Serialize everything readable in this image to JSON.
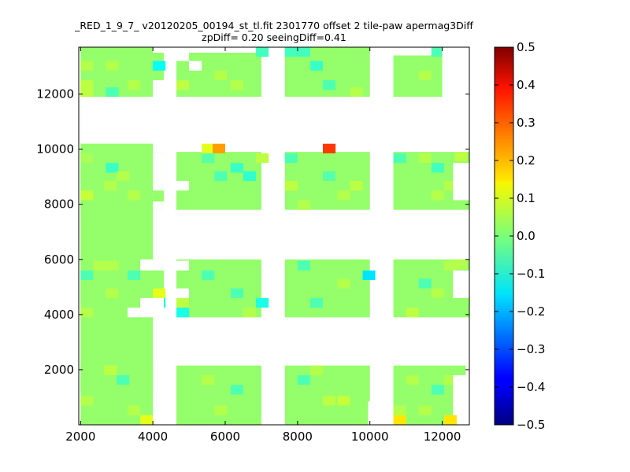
{
  "chart_data": {
    "type": "heatmap",
    "title": "_RED_1_9_7_ v20120205_00194_st_tl.fit 2301770 offset 2 tile-paw apermag3Diff",
    "subtitle": "zpDiff= 0.20 seeingDiff=0.41",
    "xlabel": "",
    "ylabel": "",
    "xlim": [
      1950,
      12750
    ],
    "ylim": [
      0,
      13700
    ],
    "xticks": [
      2000,
      4000,
      6000,
      8000,
      10000,
      12000
    ],
    "yticks": [
      2000,
      4000,
      6000,
      8000,
      10000,
      12000
    ],
    "colormap": "jet",
    "color_range": [
      -0.5,
      0.5
    ],
    "colorbar_ticks": [
      0.5,
      0.4,
      0.3,
      0.2,
      0.1,
      0.0,
      -0.1,
      -0.2,
      -0.3,
      -0.4,
      -0.5
    ],
    "cell_size": [
      350,
      350
    ],
    "background_value": 0.02,
    "blocks": [
      {
        "x": [
          2000,
          4000
        ],
        "y": [
          1200,
          13700
        ]
      },
      {
        "x": [
          4000,
          4300
        ],
        "y": [
          12500,
          13500
        ]
      },
      {
        "x": [
          4650,
          7000
        ],
        "y": [
          11900,
          13500
        ]
      },
      {
        "x": [
          7650,
          10000
        ],
        "y": [
          11900,
          13700
        ]
      },
      {
        "x": [
          10650,
          12000
        ],
        "y": [
          11900,
          13400
        ]
      },
      {
        "x": [
          2000,
          4000
        ],
        "y": [
          7800,
          9900
        ]
      },
      {
        "x": [
          4000,
          4300
        ],
        "y": [
          7800,
          9900
        ]
      },
      {
        "x": [
          4650,
          7000
        ],
        "y": [
          7800,
          9900
        ]
      },
      {
        "x": [
          7650,
          10000
        ],
        "y": [
          7800,
          9900
        ]
      },
      {
        "x": [
          10650,
          12750
        ],
        "y": [
          7800,
          9900
        ]
      },
      {
        "x": [
          2000,
          4300
        ],
        "y": [
          3900,
          6000
        ]
      },
      {
        "x": [
          4650,
          7000
        ],
        "y": [
          3900,
          6000
        ]
      },
      {
        "x": [
          7650,
          10000
        ],
        "y": [
          3900,
          6000
        ]
      },
      {
        "x": [
          10650,
          12750
        ],
        "y": [
          3900,
          6000
        ]
      },
      {
        "x": [
          2000,
          4000
        ],
        "y": [
          0,
          2150
        ]
      },
      {
        "x": [
          4650,
          7000
        ],
        "y": [
          0,
          2150
        ]
      },
      {
        "x": [
          7650,
          10000
        ],
        "y": [
          0,
          2150
        ]
      },
      {
        "x": [
          10650,
          12650
        ],
        "y": [
          0,
          2150
        ]
      }
    ],
    "holes": [
      {
        "x": [
          2000,
          12750
        ],
        "y": [
          10200,
          11900
        ]
      },
      {
        "x": [
          4000,
          4300
        ],
        "y": [
          11900,
          12500
        ]
      },
      {
        "x": [
          4000,
          4300
        ],
        "y": [
          13500,
          13700
        ]
      },
      {
        "x": [
          4650,
          5000
        ],
        "y": [
          13200,
          13500
        ]
      },
      {
        "x": [
          5000,
          5350
        ],
        "y": [
          12850,
          13200
        ]
      },
      {
        "x": [
          12000,
          12750
        ],
        "y": [
          11900,
          13700
        ]
      },
      {
        "x": [
          4000,
          4300
        ],
        "y": [
          7800,
          8100
        ]
      },
      {
        "x": [
          4000,
          4300
        ],
        "y": [
          8500,
          9900
        ]
      },
      {
        "x": [
          4650,
          5000
        ],
        "y": [
          8500,
          8850
        ]
      },
      {
        "x": [
          12300,
          12750
        ],
        "y": [
          8150,
          9500
        ]
      },
      {
        "x": [
          3300,
          3650
        ],
        "y": [
          3900,
          4250
        ]
      },
      {
        "x": [
          3650,
          4300
        ],
        "y": [
          3900,
          4600
        ]
      },
      {
        "x": [
          3650,
          4000
        ],
        "y": [
          5600,
          6000
        ]
      },
      {
        "x": [
          4000,
          4300
        ],
        "y": [
          5600,
          6000
        ]
      },
      {
        "x": [
          4650,
          5000
        ],
        "y": [
          5600,
          5950
        ]
      },
      {
        "x": [
          4650,
          5000
        ],
        "y": [
          4600,
          4950
        ]
      },
      {
        "x": [
          12300,
          12750
        ],
        "y": [
          4600,
          5600
        ]
      },
      {
        "x": [
          9950,
          10650
        ],
        "y": [
          0,
          850
        ]
      },
      {
        "x": [
          12300,
          12750
        ],
        "y": [
          350,
          1800
        ]
      },
      {
        "x": [
          12400,
          12750
        ],
        "y": [
          0,
          350
        ]
      }
    ],
    "cells": [
      {
        "x": 5350,
        "y": 9850,
        "v": 0.1
      },
      {
        "x": 5650,
        "y": 9850,
        "v": 0.22
      },
      {
        "x": 8700,
        "y": 9850,
        "v": 0.32
      },
      {
        "x": 4000,
        "y": 4600,
        "v": 0.1
      },
      {
        "x": 4000,
        "y": 4250,
        "v": -0.1
      },
      {
        "x": 4650,
        "y": 4250,
        "v": 0.06
      },
      {
        "x": 4650,
        "y": 3900,
        "v": -0.1
      },
      {
        "x": 4000,
        "y": 12850,
        "v": -0.12
      },
      {
        "x": 9800,
        "y": 5250,
        "v": -0.15
      },
      {
        "x": 6850,
        "y": 4250,
        "v": -0.1
      },
      {
        "x": 6500,
        "y": 8850,
        "v": -0.08
      },
      {
        "x": 10650,
        "y": 0,
        "v": 0.15
      },
      {
        "x": 12050,
        "y": 0,
        "v": 0.15
      },
      {
        "x": 10650,
        "y": 350,
        "v": 0.05
      },
      {
        "x": 3650,
        "y": 0,
        "v": 0.1
      },
      {
        "x": 6850,
        "y": 9500,
        "v": 0.06
      },
      {
        "x": 7650,
        "y": 8500,
        "v": 0.06
      },
      {
        "x": 7650,
        "y": 9500,
        "v": -0.05
      },
      {
        "x": 7650,
        "y": 13350,
        "v": -0.06
      },
      {
        "x": 8000,
        "y": 13350,
        "v": -0.06
      },
      {
        "x": 2000,
        "y": 12850,
        "v": 0.05
      },
      {
        "x": 2700,
        "y": 12850,
        "v": 0.05
      },
      {
        "x": 3300,
        "y": 12150,
        "v": 0.05
      },
      {
        "x": 2700,
        "y": 11900,
        "v": -0.05
      },
      {
        "x": 2000,
        "y": 11900,
        "v": 0.06
      },
      {
        "x": 2000,
        "y": 12150,
        "v": 0.06
      },
      {
        "x": 8350,
        "y": 12850,
        "v": -0.07
      },
      {
        "x": 6850,
        "y": 13350,
        "v": -0.06
      },
      {
        "x": 5700,
        "y": 12500,
        "v": 0.05
      },
      {
        "x": 6150,
        "y": 12150,
        "v": 0.05
      },
      {
        "x": 4650,
        "y": 12150,
        "v": 0.06
      },
      {
        "x": 8700,
        "y": 12150,
        "v": -0.05
      },
      {
        "x": 9450,
        "y": 11900,
        "v": 0.05
      },
      {
        "x": 11350,
        "y": 12500,
        "v": 0.05
      },
      {
        "x": 11700,
        "y": 13350,
        "v": -0.05
      },
      {
        "x": 2000,
        "y": 9500,
        "v": 0.04
      },
      {
        "x": 2700,
        "y": 9150,
        "v": -0.07
      },
      {
        "x": 3000,
        "y": 8850,
        "v": 0.05
      },
      {
        "x": 2650,
        "y": 8500,
        "v": 0.05
      },
      {
        "x": 2000,
        "y": 8150,
        "v": 0.07
      },
      {
        "x": 3300,
        "y": 8150,
        "v": 0.05
      },
      {
        "x": 5350,
        "y": 9500,
        "v": -0.04
      },
      {
        "x": 6150,
        "y": 9150,
        "v": -0.07
      },
      {
        "x": 5700,
        "y": 8850,
        "v": -0.05
      },
      {
        "x": 8000,
        "y": 7800,
        "v": 0.05
      },
      {
        "x": 9100,
        "y": 8150,
        "v": 0.05
      },
      {
        "x": 9450,
        "y": 8500,
        "v": 0.06
      },
      {
        "x": 8700,
        "y": 8850,
        "v": -0.04
      },
      {
        "x": 11350,
        "y": 9500,
        "v": 0.05
      },
      {
        "x": 11700,
        "y": 9150,
        "v": -0.06
      },
      {
        "x": 10650,
        "y": 9500,
        "v": -0.05
      },
      {
        "x": 12050,
        "y": 8500,
        "v": 0.05
      },
      {
        "x": 11700,
        "y": 8150,
        "v": 0.05
      },
      {
        "x": 12350,
        "y": 9550,
        "v": 0.06
      },
      {
        "x": 2350,
        "y": 5600,
        "v": 0.05
      },
      {
        "x": 2700,
        "y": 5600,
        "v": 0.05
      },
      {
        "x": 2000,
        "y": 5250,
        "v": -0.05
      },
      {
        "x": 3300,
        "y": 5250,
        "v": -0.05
      },
      {
        "x": 2700,
        "y": 4600,
        "v": 0.05
      },
      {
        "x": 2000,
        "y": 3900,
        "v": 0.05
      },
      {
        "x": 5350,
        "y": 5250,
        "v": -0.05
      },
      {
        "x": 6150,
        "y": 4600,
        "v": -0.05
      },
      {
        "x": 6500,
        "y": 3900,
        "v": 0.05
      },
      {
        "x": 8000,
        "y": 5600,
        "v": -0.05
      },
      {
        "x": 9100,
        "y": 4950,
        "v": 0.05
      },
      {
        "x": 8350,
        "y": 4250,
        "v": -0.05
      },
      {
        "x": 11350,
        "y": 4950,
        "v": -0.05
      },
      {
        "x": 11700,
        "y": 4600,
        "v": 0.05
      },
      {
        "x": 11000,
        "y": 3900,
        "v": 0.06
      },
      {
        "x": 12050,
        "y": 5600,
        "v": 0.05
      },
      {
        "x": 12350,
        "y": 5650,
        "v": 0.05
      },
      {
        "x": 2650,
        "y": 1800,
        "v": 0.06
      },
      {
        "x": 3000,
        "y": 1450,
        "v": -0.05
      },
      {
        "x": 2000,
        "y": 700,
        "v": 0.05
      },
      {
        "x": 3300,
        "y": 350,
        "v": 0.05
      },
      {
        "x": 5350,
        "y": 1450,
        "v": 0.05
      },
      {
        "x": 6150,
        "y": 1100,
        "v": -0.05
      },
      {
        "x": 5700,
        "y": 350,
        "v": 0.05
      },
      {
        "x": 8700,
        "y": 700,
        "v": 0.06
      },
      {
        "x": 9100,
        "y": 700,
        "v": 0.07
      },
      {
        "x": 8000,
        "y": 1450,
        "v": -0.05
      },
      {
        "x": 8350,
        "y": 1800,
        "v": 0.05
      },
      {
        "x": 11000,
        "y": 1450,
        "v": 0.05
      },
      {
        "x": 11700,
        "y": 1100,
        "v": -0.05
      },
      {
        "x": 11350,
        "y": 350,
        "v": 0.05
      },
      {
        "x": 12050,
        "y": 1450,
        "v": 0.05
      }
    ]
  }
}
